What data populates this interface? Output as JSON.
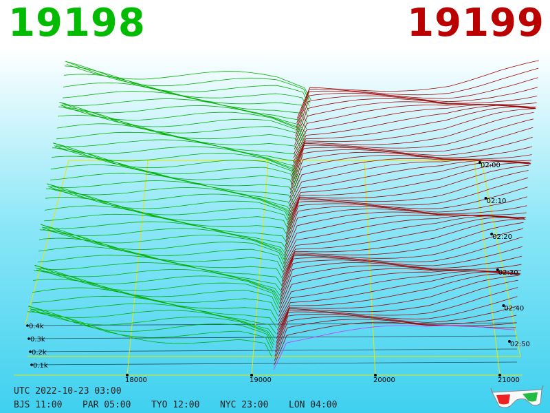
{
  "header": {
    "bid_price": "19198",
    "ask_price": "19199"
  },
  "colors": {
    "bid": "#00bb00",
    "ask": "#aa0000",
    "grid": "#e8e800",
    "volume_lines": "#111111"
  },
  "chart_data": {
    "type": "area",
    "subtype": "3d-depth-waterfall",
    "title": "",
    "x_ticks": [
      "18000",
      "19000",
      "20000",
      "21000"
    ],
    "z_ticks": [
      "0.1k",
      "0.2k",
      "0.3k",
      "0.4k"
    ],
    "time_ticks": [
      "02:00",
      "02:10",
      "02:20",
      "02:30",
      "02:40",
      "02:50"
    ],
    "snapshot_count": 58,
    "mid_price": 19198.5,
    "series": [
      {
        "side": "bid",
        "price": [
          17300,
          17500,
          17900,
          18200,
          18600,
          18900,
          19100,
          19198
        ],
        "cum_volume_k": [
          0.3,
          0.28,
          0.24,
          0.22,
          0.2,
          0.18,
          0.14,
          0.0
        ]
      },
      {
        "side": "ask",
        "price": [
          19199,
          19300,
          19700,
          20000,
          20400,
          20800,
          21100
        ],
        "cum_volume_k": [
          0.0,
          0.16,
          0.18,
          0.19,
          0.2,
          0.24,
          0.26
        ]
      }
    ]
  },
  "footer": {
    "utc_label": "UTC 2022-10-23 03:00",
    "bjs": "BJS 11:00",
    "par": "PAR 05:00",
    "tyo": "TYO 12:00",
    "nyc": "NYC 23:00",
    "lon": "LON 04:00"
  },
  "glasses_icon": "3d-glasses-icon"
}
